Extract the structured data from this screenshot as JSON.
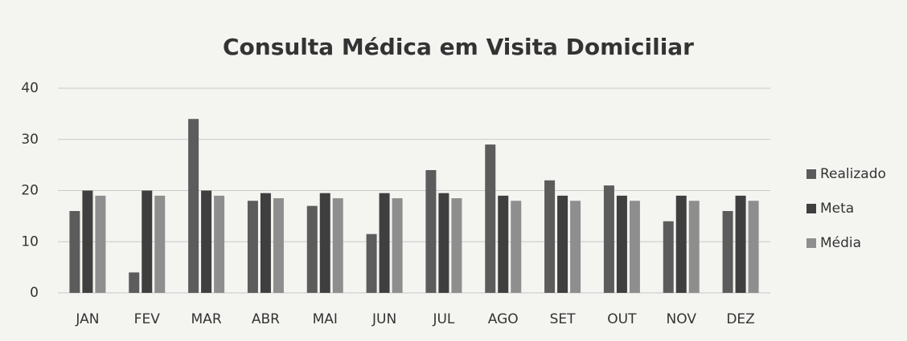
{
  "chart_data": {
    "type": "bar",
    "title": "Consulta Médica em Visita  Domiciliar",
    "categories": [
      "JAN",
      "FEV",
      "MAR",
      "ABR",
      "MAI",
      "JUN",
      "JUL",
      "AGO",
      "SET",
      "OUT",
      "NOV",
      "DEZ"
    ],
    "series": [
      {
        "name": "Realizado",
        "color": "#5c5c5c",
        "values": [
          16,
          4,
          34,
          18,
          17,
          11.5,
          24,
          29,
          22,
          21,
          14,
          16
        ]
      },
      {
        "name": "Meta",
        "color": "#3f3f3f",
        "values": [
          20,
          20,
          20,
          19.5,
          19.5,
          19.5,
          19.5,
          19,
          19,
          19,
          19,
          19
        ]
      },
      {
        "name": "Média",
        "color": "#8e8e8e",
        "values": [
          19,
          19,
          19,
          18.5,
          18.5,
          18.5,
          18.5,
          18,
          18,
          18,
          18,
          18
        ]
      }
    ],
    "ylim": [
      0,
      40
    ],
    "yticks": [
      0,
      10,
      20,
      30,
      40
    ],
    "grid": true,
    "legend": "right"
  }
}
